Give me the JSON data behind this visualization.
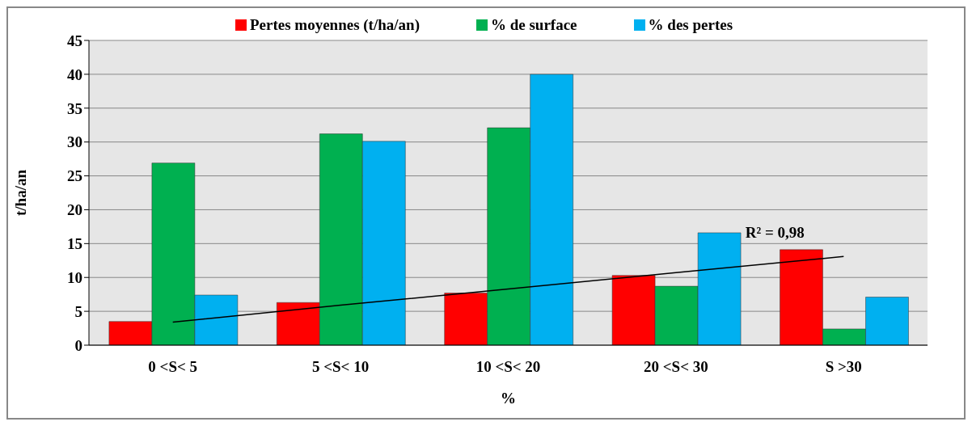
{
  "chart_data": {
    "type": "bar",
    "xlabel": "%",
    "ylabel": "t/ha/an",
    "categories": [
      "0 <S< 5",
      "5 <S< 10",
      "10 <S< 20",
      "20 <S< 30",
      "S >30"
    ],
    "series": [
      {
        "name": "Pertes moyennes (t/ha/an)",
        "color": "#ff0000",
        "values": [
          3.5,
          6.3,
          7.7,
          10.3,
          14.1
        ]
      },
      {
        "name": "% de surface",
        "color": "#00b050",
        "values": [
          26.9,
          31.2,
          32.1,
          8.7,
          2.4
        ]
      },
      {
        "name": "% des pertes",
        "color": "#00b0f0",
        "values": [
          7.4,
          30.1,
          40,
          16.6,
          7.1
        ]
      },
      {
        "type": "line",
        "color": "#000000",
        "values": [
          3.4,
          5.9,
          8.3,
          10.7,
          13.1
        ]
      }
    ],
    "annotations": [
      "R² = 0,98"
    ],
    "ylim": [
      0,
      45
    ],
    "yticks": [
      0,
      5,
      10,
      15,
      20,
      25,
      30,
      35,
      40,
      45
    ],
    "grid": "y",
    "legend": "top",
    "marker": "none"
  }
}
